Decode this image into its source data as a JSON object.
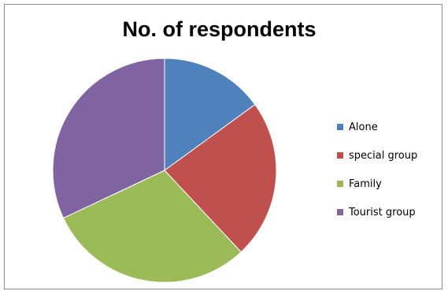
{
  "chart_data": {
    "type": "pie",
    "title": "No. of respondents",
    "categories": [
      "Alone",
      "special group",
      "Family",
      "Tourist group"
    ],
    "values": [
      15,
      23,
      30,
      32
    ],
    "colors": [
      "#4f81bd",
      "#c0504d",
      "#9bbb59",
      "#8064a2"
    ],
    "legend_position": "right",
    "start_angle_deg": 0,
    "direction": "clockwise"
  }
}
